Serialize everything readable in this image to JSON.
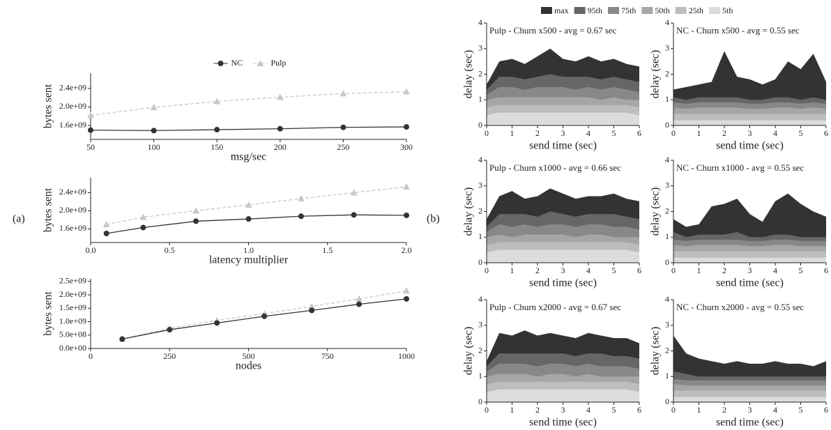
{
  "panel_labels": [
    "(a)",
    "(b)"
  ],
  "area_legend": [
    {
      "name": "max",
      "color": "#333333"
    },
    {
      "name": "95th",
      "color": "#666666"
    },
    {
      "name": "75th",
      "color": "#888888"
    },
    {
      "name": "50th",
      "color": "#a6a6a6"
    },
    {
      "name": "25th",
      "color": "#bdbdbd"
    },
    {
      "name": "5th",
      "color": "#dcdcdc"
    }
  ],
  "chart_data": [
    {
      "type": "line",
      "legend": "top",
      "xlabel": "msg/sec",
      "ylabel": "bytes sent",
      "x": [
        50,
        100,
        150,
        200,
        250,
        300
      ],
      "xlim": [
        50,
        300
      ],
      "xticks": [
        50,
        100,
        150,
        200,
        250,
        300
      ],
      "ylim": [
        1300000000,
        2730000000
      ],
      "yticks": [
        {
          "value": 1600000000,
          "label": "1.6e+09"
        },
        {
          "value": 2000000000,
          "label": "2.0e+09"
        },
        {
          "value": 2400000000,
          "label": "2.4e+09"
        }
      ],
      "series": [
        {
          "name": "NC",
          "color": "#333333",
          "line_style": "solid",
          "marker": "circle",
          "values": [
            1500000000,
            1490000000,
            1510000000,
            1530000000,
            1560000000,
            1570000000
          ]
        },
        {
          "name": "Pulp",
          "color": "#c8c8c8",
          "line_style": "dashed",
          "marker": "triangle",
          "values": [
            1820000000,
            1990000000,
            2120000000,
            2210000000,
            2290000000,
            2330000000
          ]
        }
      ]
    },
    {
      "type": "line",
      "xlabel": "latency multiplier",
      "ylabel": "bytes sent",
      "x": [
        0.1,
        0.333,
        0.667,
        1.0,
        1.333,
        1.667,
        2.0
      ],
      "xlim": [
        0,
        2
      ],
      "xticks": [
        {
          "value": 0,
          "label": "0.0"
        },
        0.5,
        {
          "value": 1,
          "label": "1.0"
        },
        1.5,
        {
          "value": 2,
          "label": "2.0"
        }
      ],
      "ylim": [
        1300000000,
        2730000000
      ],
      "yticks": [
        {
          "value": 1600000000,
          "label": "1.6e+09"
        },
        {
          "value": 2000000000,
          "label": "2.0e+09"
        },
        {
          "value": 2400000000,
          "label": "2.4e+09"
        }
      ],
      "series": [
        {
          "values": [
            1500000000,
            1630000000,
            1770000000,
            1820000000,
            1880000000,
            1910000000,
            1900000000
          ]
        },
        {
          "values": [
            1700000000,
            1860000000,
            2000000000,
            2130000000,
            2270000000,
            2400000000,
            2530000000
          ]
        }
      ]
    },
    {
      "type": "line",
      "xlabel": "nodes",
      "ylabel": "bytes sent",
      "x": [
        100,
        250,
        400,
        550,
        700,
        850,
        1000
      ],
      "xlim": [
        0,
        1000
      ],
      "xticks": [
        0,
        250,
        500,
        750,
        1000
      ],
      "ylim": [
        0,
        2600000000
      ],
      "yticks": [
        {
          "value": 0,
          "label": "0.0e+00"
        },
        {
          "value": 500000000,
          "label": "5.0e+08"
        },
        {
          "value": 1000000000,
          "label": "1.0e+09"
        },
        {
          "value": 1500000000,
          "label": "1.5e+09"
        },
        {
          "value": 2000000000,
          "label": "2.0e+09"
        },
        {
          "value": 2500000000,
          "label": "2.5e+09"
        }
      ],
      "series": [
        {
          "values": [
            350000000,
            700000000,
            950000000,
            1200000000,
            1420000000,
            1650000000,
            1850000000
          ]
        },
        {
          "values": [
            350000000,
            750000000,
            1050000000,
            1300000000,
            1570000000,
            1850000000,
            2150000000
          ]
        }
      ]
    },
    {
      "type": "area",
      "title": "Pulp - Churn x500 - avg = 0.67 sec",
      "xlabel": "send time (sec)",
      "ylabel": "delay (sec)",
      "x": [
        0,
        0.5,
        1,
        1.5,
        2,
        2.5,
        3,
        3.5,
        4,
        4.5,
        5,
        5.5,
        6
      ],
      "xlim": [
        0,
        6
      ],
      "xticks": [
        0,
        1,
        2,
        3,
        4,
        5,
        6
      ],
      "ylim": [
        0,
        4
      ],
      "yticks": [
        0,
        1,
        2,
        3,
        4
      ],
      "series": [
        {
          "values": [
            1.6,
            2.5,
            2.6,
            2.4,
            2.7,
            3.0,
            2.6,
            2.5,
            2.7,
            2.5,
            2.6,
            2.4,
            2.3
          ]
        },
        {
          "values": [
            1.4,
            1.9,
            1.9,
            1.8,
            1.9,
            2.0,
            1.9,
            1.9,
            1.9,
            1.8,
            1.9,
            1.8,
            1.7
          ]
        },
        {
          "values": [
            1.2,
            1.5,
            1.5,
            1.4,
            1.5,
            1.5,
            1.5,
            1.4,
            1.5,
            1.4,
            1.5,
            1.4,
            1.3
          ]
        },
        {
          "values": [
            1.0,
            1.1,
            1.1,
            1.1,
            1.1,
            1.1,
            1.1,
            1.1,
            1.1,
            1.0,
            1.1,
            1.0,
            1.0
          ]
        },
        {
          "values": [
            0.7,
            0.8,
            0.8,
            0.8,
            0.8,
            0.8,
            0.8,
            0.8,
            0.8,
            0.8,
            0.8,
            0.8,
            0.7
          ]
        },
        {
          "values": [
            0.4,
            0.5,
            0.5,
            0.5,
            0.5,
            0.5,
            0.5,
            0.5,
            0.5,
            0.5,
            0.5,
            0.5,
            0.4
          ]
        }
      ]
    },
    {
      "type": "area",
      "title": "NC - Churn x500 - avg = 0.55 sec",
      "xlabel": "send time (sec)",
      "ylabel": "delay (sec)",
      "x": [
        0,
        0.5,
        1,
        1.5,
        2,
        2.5,
        3,
        3.5,
        4,
        4.5,
        5,
        5.5,
        6
      ],
      "xlim": [
        0,
        6
      ],
      "xticks": [
        0,
        1,
        2,
        3,
        4,
        5,
        6
      ],
      "ylim": [
        0,
        4
      ],
      "yticks": [
        0,
        1,
        2,
        3,
        4
      ],
      "series": [
        {
          "values": [
            1.4,
            1.5,
            1.6,
            1.7,
            2.9,
            1.9,
            1.8,
            1.6,
            1.8,
            2.5,
            2.2,
            2.8,
            1.7
          ]
        },
        {
          "values": [
            1.1,
            1.0,
            1.1,
            1.1,
            1.1,
            1.1,
            1.0,
            1.0,
            1.1,
            1.1,
            1.0,
            1.1,
            1.0
          ]
        },
        {
          "values": [
            0.9,
            0.85,
            0.9,
            0.9,
            0.9,
            0.9,
            0.85,
            0.85,
            0.9,
            0.9,
            0.85,
            0.9,
            0.85
          ]
        },
        {
          "values": [
            0.7,
            0.65,
            0.7,
            0.7,
            0.7,
            0.7,
            0.65,
            0.65,
            0.7,
            0.7,
            0.65,
            0.7,
            0.65
          ]
        },
        {
          "values": [
            0.45,
            0.45,
            0.45,
            0.45,
            0.45,
            0.45,
            0.45,
            0.45,
            0.45,
            0.45,
            0.45,
            0.45,
            0.45
          ]
        },
        {
          "values": [
            0.2,
            0.2,
            0.2,
            0.2,
            0.2,
            0.2,
            0.2,
            0.2,
            0.2,
            0.2,
            0.2,
            0.2,
            0.2
          ]
        }
      ]
    },
    {
      "type": "area",
      "title": "Pulp - Churn x1000 - avg = 0.66 sec",
      "xlabel": "send time (sec)",
      "ylabel": "delay (sec)",
      "x": [
        0,
        0.5,
        1,
        1.5,
        2,
        2.5,
        3,
        3.5,
        4,
        4.5,
        5,
        5.5,
        6
      ],
      "xlim": [
        0,
        6
      ],
      "xticks": [
        0,
        1,
        2,
        3,
        4,
        5,
        6
      ],
      "ylim": [
        0,
        4
      ],
      "yticks": [
        0,
        1,
        2,
        3,
        4
      ],
      "series": [
        {
          "values": [
            1.7,
            2.6,
            2.8,
            2.5,
            2.6,
            2.9,
            2.7,
            2.5,
            2.6,
            2.6,
            2.7,
            2.5,
            2.4
          ]
        },
        {
          "values": [
            1.4,
            1.9,
            1.9,
            1.9,
            1.8,
            2.0,
            1.9,
            1.8,
            1.9,
            1.9,
            1.9,
            1.8,
            1.7
          ]
        },
        {
          "values": [
            1.2,
            1.5,
            1.4,
            1.5,
            1.4,
            1.5,
            1.5,
            1.4,
            1.5,
            1.5,
            1.4,
            1.4,
            1.3
          ]
        },
        {
          "values": [
            1.0,
            1.1,
            1.0,
            1.1,
            1.1,
            1.1,
            1.1,
            1.0,
            1.1,
            1.1,
            1.0,
            1.0,
            1.0
          ]
        },
        {
          "values": [
            0.7,
            0.8,
            0.8,
            0.8,
            0.8,
            0.8,
            0.8,
            0.8,
            0.8,
            0.8,
            0.8,
            0.8,
            0.7
          ]
        },
        {
          "values": [
            0.4,
            0.5,
            0.5,
            0.5,
            0.5,
            0.5,
            0.5,
            0.5,
            0.5,
            0.5,
            0.5,
            0.5,
            0.4
          ]
        }
      ]
    },
    {
      "type": "area",
      "title": "NC - Churn x1000 - avg = 0.55 sec",
      "xlabel": "send time (sec)",
      "ylabel": "delay (sec)",
      "x": [
        0,
        0.5,
        1,
        1.5,
        2,
        2.5,
        3,
        3.5,
        4,
        4.5,
        5,
        5.5,
        6
      ],
      "xlim": [
        0,
        6
      ],
      "xticks": [
        0,
        1,
        2,
        3,
        4,
        5,
        6
      ],
      "ylim": [
        0,
        4
      ],
      "yticks": [
        0,
        1,
        2,
        3,
        4
      ],
      "series": [
        {
          "values": [
            1.7,
            1.4,
            1.5,
            2.2,
            2.3,
            2.5,
            1.9,
            1.6,
            2.4,
            2.7,
            2.3,
            2.0,
            1.8
          ]
        },
        {
          "values": [
            1.2,
            1.0,
            1.1,
            1.1,
            1.1,
            1.2,
            1.0,
            1.0,
            1.1,
            1.1,
            1.0,
            1.0,
            1.0
          ]
        },
        {
          "values": [
            0.9,
            0.85,
            0.9,
            0.9,
            0.9,
            0.9,
            0.85,
            0.85,
            0.9,
            0.9,
            0.85,
            0.85,
            0.85
          ]
        },
        {
          "values": [
            0.7,
            0.65,
            0.7,
            0.7,
            0.7,
            0.7,
            0.65,
            0.65,
            0.7,
            0.7,
            0.65,
            0.65,
            0.65
          ]
        },
        {
          "values": [
            0.45,
            0.45,
            0.45,
            0.45,
            0.45,
            0.45,
            0.45,
            0.45,
            0.45,
            0.45,
            0.45,
            0.45,
            0.45
          ]
        },
        {
          "values": [
            0.2,
            0.2,
            0.2,
            0.2,
            0.2,
            0.2,
            0.2,
            0.2,
            0.2,
            0.2,
            0.2,
            0.2,
            0.2
          ]
        }
      ]
    },
    {
      "type": "area",
      "title": "Pulp - Churn x2000 - avg = 0.67 sec",
      "xlabel": "send time (sec)",
      "ylabel": "delay (sec)",
      "x": [
        0,
        0.5,
        1,
        1.5,
        2,
        2.5,
        3,
        3.5,
        4,
        4.5,
        5,
        5.5,
        6
      ],
      "xlim": [
        0,
        6
      ],
      "xticks": [
        0,
        1,
        2,
        3,
        4,
        5,
        6
      ],
      "ylim": [
        0,
        4
      ],
      "yticks": [
        0,
        1,
        2,
        3,
        4
      ],
      "series": [
        {
          "values": [
            1.6,
            2.7,
            2.6,
            2.8,
            2.6,
            2.7,
            2.6,
            2.5,
            2.7,
            2.6,
            2.5,
            2.5,
            2.3
          ]
        },
        {
          "values": [
            1.4,
            1.9,
            1.9,
            1.9,
            1.9,
            1.9,
            1.9,
            1.8,
            1.9,
            1.9,
            1.8,
            1.8,
            1.7
          ]
        },
        {
          "values": [
            1.2,
            1.5,
            1.5,
            1.5,
            1.4,
            1.5,
            1.5,
            1.4,
            1.5,
            1.4,
            1.4,
            1.4,
            1.3
          ]
        },
        {
          "values": [
            1.0,
            1.1,
            1.1,
            1.1,
            1.0,
            1.1,
            1.1,
            1.0,
            1.1,
            1.0,
            1.0,
            1.0,
            1.0
          ]
        },
        {
          "values": [
            0.7,
            0.8,
            0.8,
            0.8,
            0.8,
            0.8,
            0.8,
            0.8,
            0.8,
            0.8,
            0.8,
            0.8,
            0.7
          ]
        },
        {
          "values": [
            0.4,
            0.5,
            0.5,
            0.5,
            0.5,
            0.5,
            0.5,
            0.5,
            0.5,
            0.5,
            0.5,
            0.5,
            0.4
          ]
        }
      ]
    },
    {
      "type": "area",
      "title": "NC - Churn x2000 - avg = 0.55 sec",
      "xlabel": "send time (sec)",
      "ylabel": "delay (sec)",
      "x": [
        0,
        0.5,
        1,
        1.5,
        2,
        2.5,
        3,
        3.5,
        4,
        4.5,
        5,
        5.5,
        6
      ],
      "xlim": [
        0,
        6
      ],
      "xticks": [
        0,
        1,
        2,
        3,
        4,
        5,
        6
      ],
      "ylim": [
        0,
        4
      ],
      "yticks": [
        0,
        1,
        2,
        3,
        4
      ],
      "series": [
        {
          "values": [
            2.6,
            1.9,
            1.7,
            1.6,
            1.5,
            1.6,
            1.5,
            1.5,
            1.6,
            1.5,
            1.5,
            1.4,
            1.6
          ]
        },
        {
          "values": [
            1.2,
            1.1,
            1.0,
            1.0,
            1.0,
            1.0,
            1.0,
            1.0,
            1.0,
            1.0,
            1.0,
            1.0,
            1.0
          ]
        },
        {
          "values": [
            0.9,
            0.85,
            0.85,
            0.85,
            0.85,
            0.85,
            0.85,
            0.85,
            0.85,
            0.85,
            0.85,
            0.85,
            0.85
          ]
        },
        {
          "values": [
            0.7,
            0.65,
            0.65,
            0.65,
            0.65,
            0.65,
            0.65,
            0.65,
            0.65,
            0.65,
            0.65,
            0.65,
            0.65
          ]
        },
        {
          "values": [
            0.45,
            0.45,
            0.45,
            0.45,
            0.45,
            0.45,
            0.45,
            0.45,
            0.45,
            0.45,
            0.45,
            0.45,
            0.45
          ]
        },
        {
          "values": [
            0.2,
            0.2,
            0.2,
            0.2,
            0.2,
            0.2,
            0.2,
            0.2,
            0.2,
            0.2,
            0.2,
            0.2,
            0.2
          ]
        }
      ]
    }
  ]
}
